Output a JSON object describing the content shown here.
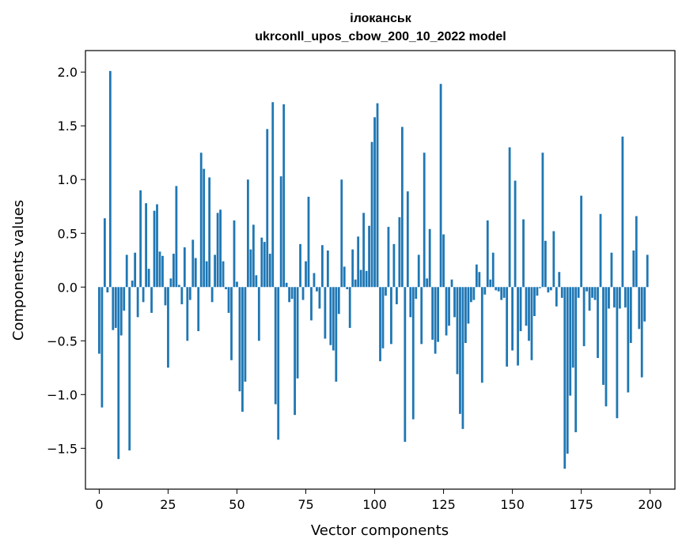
{
  "chart_data": {
    "type": "bar",
    "title_line1": "ілоканськ",
    "title_line2": "ukrconll_upos_cbow_200_10_2022 model",
    "xlabel": "Vector components",
    "ylabel": "Components values",
    "xlim": [
      -5,
      209
    ],
    "ylim": [
      -1.88,
      2.2
    ],
    "xticks": [
      0,
      25,
      50,
      75,
      100,
      125,
      150,
      175,
      200
    ],
    "xtick_labels": [
      "0",
      "25",
      "50",
      "75",
      "100",
      "125",
      "150",
      "175",
      "200"
    ],
    "yticks": [
      2.0,
      1.5,
      1.0,
      0.5,
      0.0,
      -0.5,
      -1.0,
      -1.5
    ],
    "ytick_labels": [
      "2.0",
      "1.5",
      "1.0",
      "0.5",
      "0.0",
      "−0.5",
      "−1.0",
      "−1.5"
    ],
    "bar_color": "#1f77b4",
    "values": [
      -0.62,
      -1.12,
      0.64,
      -0.05,
      2.01,
      -0.4,
      -0.38,
      -1.6,
      -0.45,
      -0.22,
      0.3,
      -1.52,
      0.06,
      0.32,
      -0.28,
      0.9,
      -0.14,
      0.78,
      0.17,
      -0.24,
      0.71,
      0.77,
      0.33,
      0.29,
      -0.17,
      -0.75,
      0.08,
      0.31,
      0.94,
      0.02,
      -0.16,
      0.37,
      -0.5,
      -0.12,
      0.44,
      0.27,
      -0.41,
      1.25,
      1.1,
      0.24,
      1.02,
      -0.14,
      0.3,
      0.69,
      0.72,
      0.24,
      -0.02,
      -0.24,
      -0.68,
      0.62,
      0.05,
      -0.97,
      -1.16,
      -0.88,
      1.0,
      0.35,
      0.58,
      0.11,
      -0.5,
      0.46,
      0.42,
      1.47,
      0.31,
      1.72,
      -1.09,
      -1.42,
      1.03,
      1.7,
      0.04,
      -0.14,
      -0.11,
      -1.19,
      -0.85,
      0.4,
      -0.12,
      0.24,
      0.84,
      -0.31,
      0.13,
      -0.04,
      -0.2,
      0.39,
      -0.48,
      0.34,
      -0.54,
      -0.59,
      -0.88,
      -0.25,
      1.0,
      0.19,
      -0.02,
      -0.38,
      0.35,
      0.07,
      0.47,
      0.16,
      0.69,
      0.15,
      0.57,
      1.35,
      1.58,
      1.71,
      -0.69,
      -0.57,
      -0.08,
      0.56,
      -0.53,
      0.4,
      -0.16,
      0.65,
      1.49,
      -1.44,
      0.89,
      -0.28,
      -1.23,
      -0.11,
      0.3,
      -0.53,
      1.25,
      0.08,
      0.54,
      -0.49,
      -0.62,
      -0.51,
      1.89,
      0.49,
      -0.45,
      -0.36,
      0.07,
      -0.28,
      -0.81,
      -1.18,
      -1.32,
      -0.52,
      -0.34,
      -0.14,
      -0.12,
      0.21,
      0.14,
      -0.89,
      -0.07,
      0.62,
      0.07,
      0.32,
      -0.03,
      -0.04,
      -0.12,
      -0.1,
      -0.74,
      1.3,
      -0.59,
      0.99,
      -0.73,
      -0.41,
      0.63,
      -0.36,
      -0.5,
      -0.68,
      -0.27,
      -0.08,
      -0.01,
      1.25,
      0.43,
      -0.05,
      -0.03,
      0.52,
      -0.18,
      0.14,
      -0.1,
      -1.69,
      -1.55,
      -1.01,
      -0.75,
      -1.35,
      -0.1,
      0.85,
      -0.55,
      -0.04,
      -0.22,
      -0.1,
      -0.12,
      -0.66,
      0.68,
      -0.91,
      -1.11,
      -0.2,
      0.32,
      -0.19,
      -1.22,
      -0.2,
      1.4,
      -0.19,
      -0.98,
      -0.52,
      0.34,
      0.66,
      -0.39,
      -0.84,
      -0.32,
      0.3
    ]
  }
}
